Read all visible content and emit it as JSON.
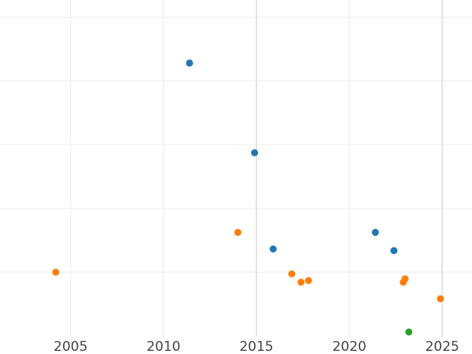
{
  "chart_data": {
    "type": "scatter",
    "title": "",
    "xlabel": "",
    "ylabel": "",
    "xlim": [
      2001.2,
      2026.6
    ],
    "ylim": [
      0,
      1
    ],
    "x_ticks": [
      2005,
      2010,
      2015,
      2020,
      2025
    ],
    "x_tick_labels": [
      "2005",
      "2010",
      "2015",
      "2020",
      "2025"
    ],
    "y_tick_labels_visible": false,
    "grid": true,
    "series": [
      {
        "color": "#1f77b4",
        "points": [
          {
            "x": 2011.4,
            "y": 0.81
          },
          {
            "x": 2014.9,
            "y": 0.54
          },
          {
            "x": 2015.9,
            "y": 0.25
          },
          {
            "x": 2021.4,
            "y": 0.3
          },
          {
            "x": 2022.4,
            "y": 0.245
          }
        ]
      },
      {
        "color": "#ff7f0e",
        "points": [
          {
            "x": 2004.2,
            "y": 0.18
          },
          {
            "x": 2014.0,
            "y": 0.3
          },
          {
            "x": 2016.9,
            "y": 0.175
          },
          {
            "x": 2017.4,
            "y": 0.15
          },
          {
            "x": 2017.8,
            "y": 0.155
          },
          {
            "x": 2022.9,
            "y": 0.15
          },
          {
            "x": 2023.0,
            "y": 0.16
          },
          {
            "x": 2024.9,
            "y": 0.1
          }
        ]
      },
      {
        "color": "#2ca02c",
        "points": [
          {
            "x": 2023.2,
            "y": 0.0
          }
        ]
      }
    ]
  }
}
